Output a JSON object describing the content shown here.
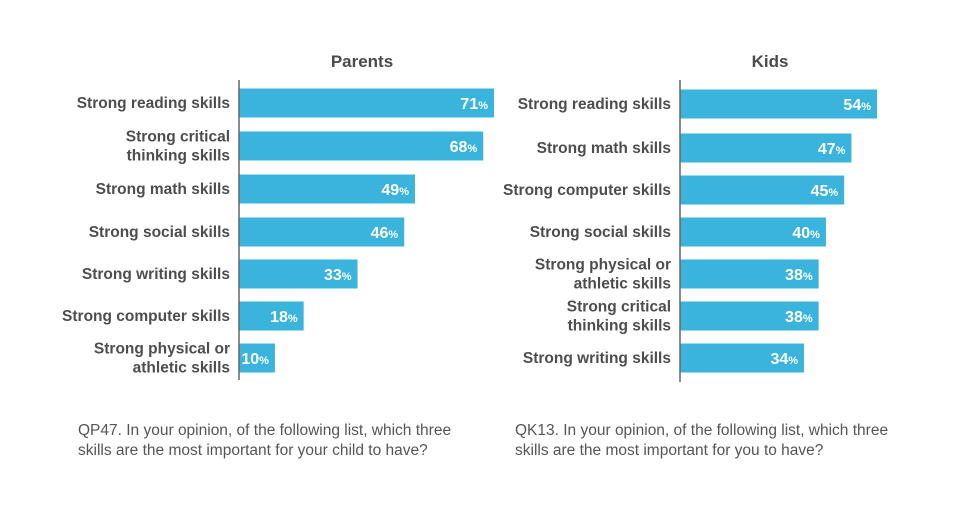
{
  "colors": {
    "bar": "#3ab4dc",
    "axis": "#666666",
    "text": "#4d4d4d"
  },
  "chart_data": [
    {
      "type": "bar",
      "orientation": "horizontal",
      "title": "Parents",
      "categories": [
        "Strong reading skills",
        "Strong critical thinking skills",
        "Strong math skills",
        "Strong social skills",
        "Strong writing skills",
        "Strong computer skills",
        "Strong physical or athletic skills"
      ],
      "category_lines": [
        [
          "Strong reading skills"
        ],
        [
          "Strong critical",
          "thinking skills"
        ],
        [
          "Strong math skills"
        ],
        [
          "Strong social skills"
        ],
        [
          "Strong writing skills"
        ],
        [
          "Strong computer skills"
        ],
        [
          "Strong physical or",
          "athletic skills"
        ]
      ],
      "values": [
        71,
        68,
        49,
        46,
        33,
        18,
        10
      ],
      "value_suffix": "%",
      "xlim": [
        0,
        100
      ]
    },
    {
      "type": "bar",
      "orientation": "horizontal",
      "title": "Kids",
      "categories": [
        "Strong reading skills",
        "Strong math skills",
        "Strong computer skills",
        "Strong social skills",
        "Strong physical or athletic skills",
        "Strong critical thinking skills",
        "Strong writing skills"
      ],
      "category_lines": [
        [
          "Strong reading skills"
        ],
        [
          "Strong math skills"
        ],
        [
          "Strong computer skills"
        ],
        [
          "Strong social skills"
        ],
        [
          "Strong physical or",
          "athletic skills"
        ],
        [
          "Strong critical",
          "thinking skills"
        ],
        [
          "Strong writing skills"
        ]
      ],
      "values": [
        54,
        47,
        45,
        40,
        38,
        38,
        34
      ],
      "value_suffix": "%",
      "xlim": [
        0,
        100
      ]
    }
  ],
  "footnotes": {
    "parents_line1": "QP47. In your opinion, of the following list, which three",
    "parents_line2": "skills are the most important for your child to have?",
    "kids_line1": "QK13. In your opinion, of the following list, which three",
    "kids_line2": "skills are the most important for you to have?"
  }
}
